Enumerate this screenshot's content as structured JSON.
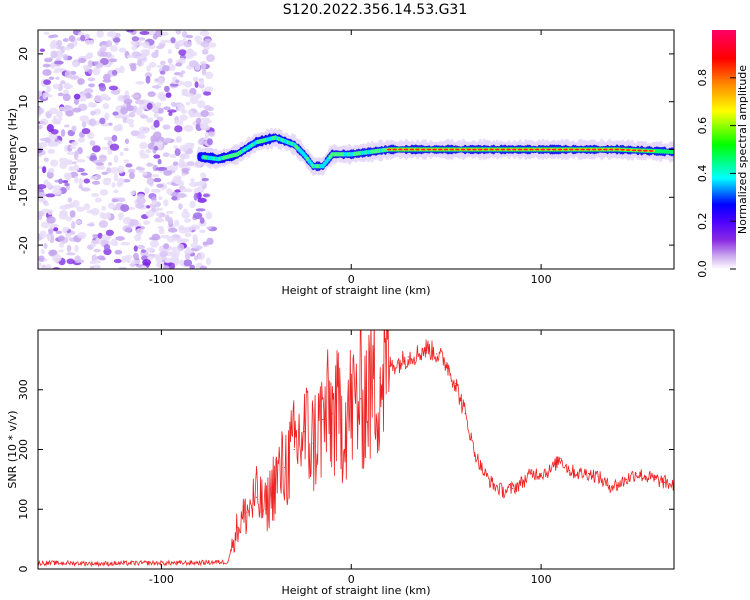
{
  "title": "S120.2022.356.14.53.G31",
  "chart_data": [
    {
      "type": "heatmap",
      "xlabel": "Height of straight line (km)",
      "ylabel": "Frequency (Hz)",
      "xlim": [
        -165,
        170
      ],
      "ylim": [
        -25,
        25
      ],
      "xticks": [
        -100,
        0,
        100
      ],
      "yticks": [
        -20,
        -10,
        0,
        10,
        20
      ],
      "colorbar": {
        "label": "Normalized spectral amplitude",
        "range": [
          0,
          1
        ],
        "ticks": [
          "0.0",
          "0.2",
          "0.4",
          "0.6",
          "0.8"
        ],
        "colors": [
          "#ffffff",
          "#cfb0f0",
          "#8a2be2",
          "#4b00ff",
          "#0000ff",
          "#00ffff",
          "#00ff00",
          "#ffff00",
          "#ff8000",
          "#ff0000",
          "#ff0066"
        ]
      },
      "noise_region_x": [
        -165,
        -73
      ],
      "signal_track": {
        "x": [
          -80,
          -70,
          -60,
          -50,
          -40,
          -30,
          -25,
          -20,
          -15,
          -10,
          0,
          20,
          60,
          100,
          140,
          170
        ],
        "y": [
          -1.5,
          -2,
          -1,
          1.5,
          2.5,
          1,
          -1,
          -3.5,
          -3.5,
          -1,
          -1,
          0,
          0,
          0,
          0,
          -0.5
        ]
      }
    },
    {
      "type": "line",
      "xlabel": "Height of straight line (km)",
      "ylabel": "SNR (10 * v/v)",
      "xlim": [
        -165,
        170
      ],
      "ylim": [
        0,
        400
      ],
      "xticks": [
        -100,
        0,
        100
      ],
      "yticks": [
        0,
        100,
        200,
        300
      ],
      "color": "#ee2222",
      "x": [
        -165,
        -150,
        -130,
        -110,
        -90,
        -75,
        -65,
        -60,
        -55,
        -50,
        -45,
        -40,
        -35,
        -30,
        -25,
        -20,
        -15,
        -10,
        -5,
        0,
        5,
        10,
        15,
        20,
        25,
        30,
        35,
        40,
        45,
        50,
        55,
        60,
        65,
        70,
        75,
        80,
        85,
        90,
        95,
        100,
        105,
        110,
        115,
        120,
        125,
        130,
        135,
        140,
        145,
        150,
        155,
        160,
        165,
        170
      ],
      "y": [
        10,
        10,
        9,
        10,
        10,
        11,
        12,
        70,
        95,
        120,
        100,
        150,
        170,
        200,
        230,
        210,
        250,
        260,
        250,
        270,
        285,
        300,
        320,
        340,
        345,
        355,
        360,
        370,
        360,
        345,
        310,
        260,
        195,
        160,
        140,
        130,
        135,
        145,
        160,
        160,
        165,
        185,
        165,
        160,
        160,
        155,
        140,
        140,
        150,
        160,
        155,
        150,
        145,
        140
      ]
    }
  ]
}
